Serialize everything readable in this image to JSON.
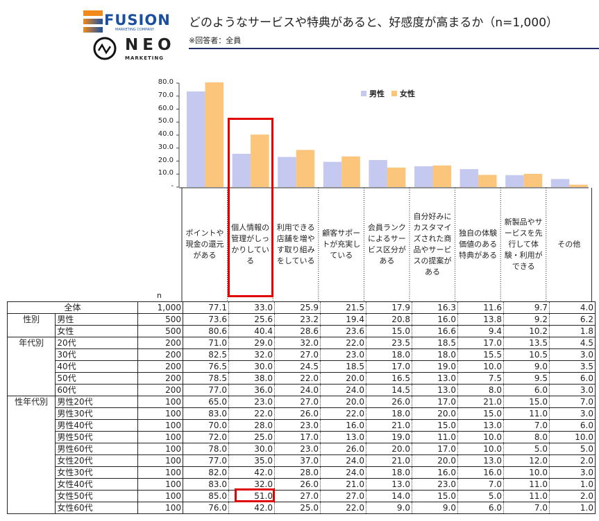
{
  "logos": {
    "fusion": "FUSION",
    "fusion_sub": "MARKETING COMPANY",
    "neo": "NEO",
    "neo_sub": "MARKETING"
  },
  "header": {
    "title": "どのようなサービスや特典があると、好感度が高まるか（n=1,000）",
    "subtitle": "※回答者：全員"
  },
  "colors": {
    "male": "#c5c9ef",
    "female": "#fbc57b",
    "highlight": "#e00000",
    "rule": "#1f2a6b"
  },
  "chart_data": {
    "type": "bar",
    "ylim": [
      0,
      80
    ],
    "yticks": [
      "80.0",
      "70.0",
      "60.0",
      "50.0",
      "40.0",
      "30.0",
      "20.0",
      "10.0",
      "-"
    ],
    "legend_position": "top-center",
    "categories": [
      "ポイントや現金の還元がある",
      "個人情報の管理がしっかりしている",
      "利用できる店舗を増やす取り組みをしている",
      "顧客サポートが充実している",
      "会員ランクによるサービス区分がある",
      "自分好みにカスタマイズされた商品やサービスの提案がある",
      "独自の体験価値のある特典がある",
      "新製品やサービスを先行して体験・利用ができる",
      "その他"
    ],
    "series": [
      {
        "name": "男性",
        "values": [
          73.6,
          25.6,
          23.2,
          19.4,
          20.8,
          16.0,
          13.8,
          9.2,
          6.2
        ]
      },
      {
        "name": "女性",
        "values": [
          80.6,
          40.4,
          28.6,
          23.6,
          15.0,
          16.6,
          9.4,
          10.2,
          1.8
        ]
      }
    ]
  },
  "table": {
    "n_label": "n",
    "rows": [
      {
        "group": "",
        "label": "全体",
        "n": "1,000",
        "v": [
          "77.1",
          "33.0",
          "25.9",
          "21.5",
          "17.9",
          "16.3",
          "11.6",
          "9.7",
          "4.0"
        ]
      },
      {
        "group": "性別",
        "label": "男性",
        "n": "500",
        "v": [
          "73.6",
          "25.6",
          "23.2",
          "19.4",
          "20.8",
          "16.0",
          "13.8",
          "9.2",
          "6.2"
        ]
      },
      {
        "group": "",
        "label": "女性",
        "n": "500",
        "v": [
          "80.6",
          "40.4",
          "28.6",
          "23.6",
          "15.0",
          "16.6",
          "9.4",
          "10.2",
          "1.8"
        ]
      },
      {
        "group": "年代別",
        "label": "20代",
        "n": "200",
        "v": [
          "71.0",
          "29.0",
          "32.0",
          "22.0",
          "23.5",
          "18.5",
          "17.0",
          "13.5",
          "4.5"
        ]
      },
      {
        "group": "",
        "label": "30代",
        "n": "200",
        "v": [
          "82.5",
          "32.0",
          "27.0",
          "23.0",
          "18.0",
          "18.0",
          "15.5",
          "10.5",
          "3.0"
        ]
      },
      {
        "group": "",
        "label": "40代",
        "n": "200",
        "v": [
          "76.5",
          "30.0",
          "24.5",
          "18.5",
          "17.0",
          "19.0",
          "10.0",
          "9.0",
          "3.5"
        ]
      },
      {
        "group": "",
        "label": "50代",
        "n": "200",
        "v": [
          "78.5",
          "38.0",
          "22.0",
          "20.0",
          "16.5",
          "13.0",
          "7.5",
          "9.5",
          "6.0"
        ]
      },
      {
        "group": "",
        "label": "60代",
        "n": "200",
        "v": [
          "77.0",
          "36.0",
          "24.0",
          "24.0",
          "14.5",
          "13.0",
          "8.0",
          "6.0",
          "3.0"
        ]
      },
      {
        "group": "性年代別",
        "label": "男性20代",
        "n": "100",
        "v": [
          "65.0",
          "23.0",
          "27.0",
          "20.0",
          "26.0",
          "17.0",
          "21.0",
          "15.0",
          "7.0"
        ]
      },
      {
        "group": "",
        "label": "男性30代",
        "n": "100",
        "v": [
          "83.0",
          "22.0",
          "26.0",
          "22.0",
          "18.0",
          "20.0",
          "15.0",
          "11.0",
          "3.0"
        ]
      },
      {
        "group": "",
        "label": "男性40代",
        "n": "100",
        "v": [
          "70.0",
          "28.0",
          "23.0",
          "16.0",
          "21.0",
          "15.0",
          "13.0",
          "7.0",
          "6.0"
        ]
      },
      {
        "group": "",
        "label": "男性50代",
        "n": "100",
        "v": [
          "72.0",
          "25.0",
          "17.0",
          "13.0",
          "19.0",
          "11.0",
          "10.0",
          "8.0",
          "10.0"
        ]
      },
      {
        "group": "",
        "label": "男性60代",
        "n": "100",
        "v": [
          "78.0",
          "30.0",
          "23.0",
          "26.0",
          "20.0",
          "17.0",
          "10.0",
          "5.0",
          "5.0"
        ]
      },
      {
        "group": "",
        "label": "女性20代",
        "n": "100",
        "v": [
          "77.0",
          "35.0",
          "37.0",
          "24.0",
          "21.0",
          "20.0",
          "13.0",
          "12.0",
          "2.0"
        ]
      },
      {
        "group": "",
        "label": "女性30代",
        "n": "100",
        "v": [
          "82.0",
          "42.0",
          "28.0",
          "24.0",
          "18.0",
          "16.0",
          "16.0",
          "10.0",
          "3.0"
        ]
      },
      {
        "group": "",
        "label": "女性40代",
        "n": "100",
        "v": [
          "83.0",
          "32.0",
          "26.0",
          "21.0",
          "13.0",
          "23.0",
          "7.0",
          "11.0",
          "1.0"
        ]
      },
      {
        "group": "",
        "label": "女性50代",
        "n": "100",
        "v": [
          "85.0",
          "51.0",
          "27.0",
          "27.0",
          "14.0",
          "15.0",
          "5.0",
          "11.0",
          "2.0"
        ]
      },
      {
        "group": "",
        "label": "女性60代",
        "n": "100",
        "v": [
          "76.0",
          "42.0",
          "25.0",
          "22.0",
          "9.0",
          "9.0",
          "6.0",
          "7.0",
          "1.0"
        ]
      }
    ]
  }
}
